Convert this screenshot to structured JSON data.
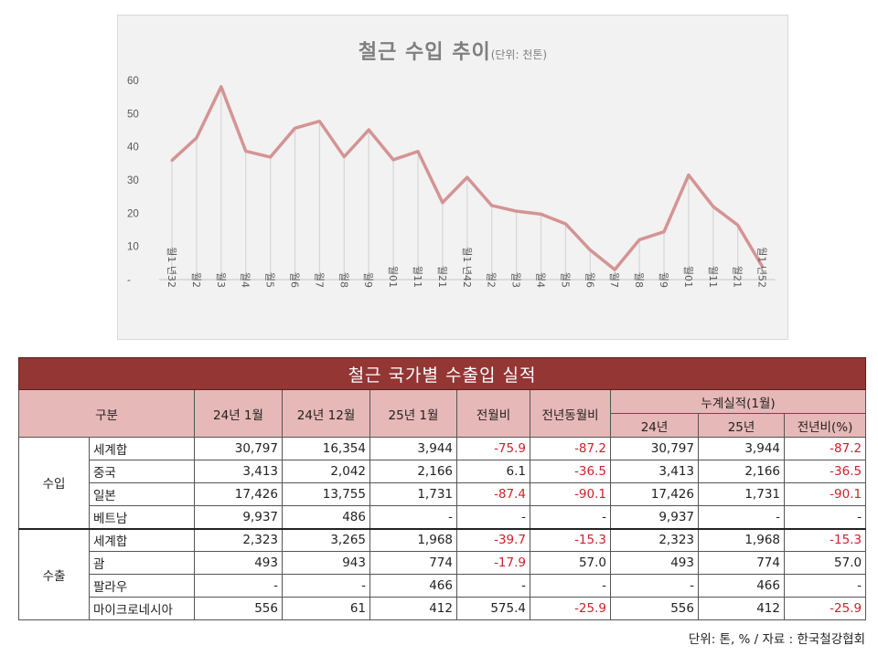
{
  "chart_data": {
    "type": "line",
    "title": "철근 수입 추이",
    "unit_label": "(단위: 천톤)",
    "xlabel": "",
    "ylabel": "",
    "ylim": [
      0,
      60
    ],
    "yticks": [
      "-",
      "10",
      "20",
      "30",
      "40",
      "50",
      "60"
    ],
    "ytick_values": [
      0,
      10,
      20,
      30,
      40,
      50,
      60
    ],
    "grid": "vertical drop lines",
    "line_color": "#d49493",
    "categories": [
      "23년 1월",
      "2월",
      "3월",
      "4월",
      "5월",
      "6월",
      "7월",
      "8월",
      "9월",
      "10월",
      "11월",
      "12월",
      "24년 1월",
      "2월",
      "3월",
      "4월",
      "5월",
      "6월",
      "7월",
      "8월",
      "9월",
      "10월",
      "11월",
      "12월",
      "25년 1월"
    ],
    "values": [
      35.9,
      42.7,
      58.1,
      38.7,
      36.9,
      45.6,
      47.7,
      37.0,
      45.1,
      36.1,
      38.6,
      23.2,
      30.8,
      22.3,
      20.6,
      19.7,
      16.8,
      8.9,
      3.0,
      12.0,
      14.4,
      31.5,
      22.0,
      16.4,
      3.9
    ]
  },
  "table": {
    "title": "철근 국가별 수출입 실적",
    "headers": {
      "category": "구분",
      "col1": "24년 1월",
      "col2": "24년 12월",
      "col3": "25년 1월",
      "col4": "전월비",
      "col5": "전년동월비",
      "cumulative": "누계실적(1월)",
      "cum1": "24년",
      "cum2": "25년",
      "cum3": "전년비(%)"
    },
    "groups": [
      {
        "label": "수입",
        "rows": [
          {
            "name": "세계합",
            "values": [
              "30,797",
              "16,354",
              "3,944",
              "-75.9",
              "-87.2",
              "30,797",
              "3,944",
              "-87.2"
            ]
          },
          {
            "name": "중국",
            "values": [
              "3,413",
              "2,042",
              "2,166",
              "6.1",
              "-36.5",
              "3,413",
              "2,166",
              "-36.5"
            ]
          },
          {
            "name": "일본",
            "values": [
              "17,426",
              "13,755",
              "1,731",
              "-87.4",
              "-90.1",
              "17,426",
              "1,731",
              "-90.1"
            ]
          },
          {
            "name": "베트남",
            "values": [
              "9,937",
              "486",
              "-",
              "-",
              "-",
              "9,937",
              "-",
              "-"
            ]
          }
        ]
      },
      {
        "label": "수출",
        "rows": [
          {
            "name": "세계합",
            "values": [
              "2,323",
              "3,265",
              "1,968",
              "-39.7",
              "-15.3",
              "2,323",
              "1,968",
              "-15.3"
            ]
          },
          {
            "name": "괌",
            "values": [
              "493",
              "943",
              "774",
              "-17.9",
              "57.0",
              "493",
              "774",
              "57.0"
            ]
          },
          {
            "name": "팔라우",
            "values": [
              "-",
              "-",
              "466",
              "-",
              "-",
              "-",
              "466",
              "-"
            ]
          },
          {
            "name": "마이크로네시아",
            "values": [
              "556",
              "61",
              "412",
              "575.4",
              "-25.9",
              "556",
              "412",
              "-25.9"
            ]
          }
        ]
      }
    ],
    "negative_color": "#d0202a",
    "header_color": "#e6b8b7",
    "title_color": "#943634"
  },
  "footnote": "단위: 톤, % / 자료 : 한국철강협회"
}
